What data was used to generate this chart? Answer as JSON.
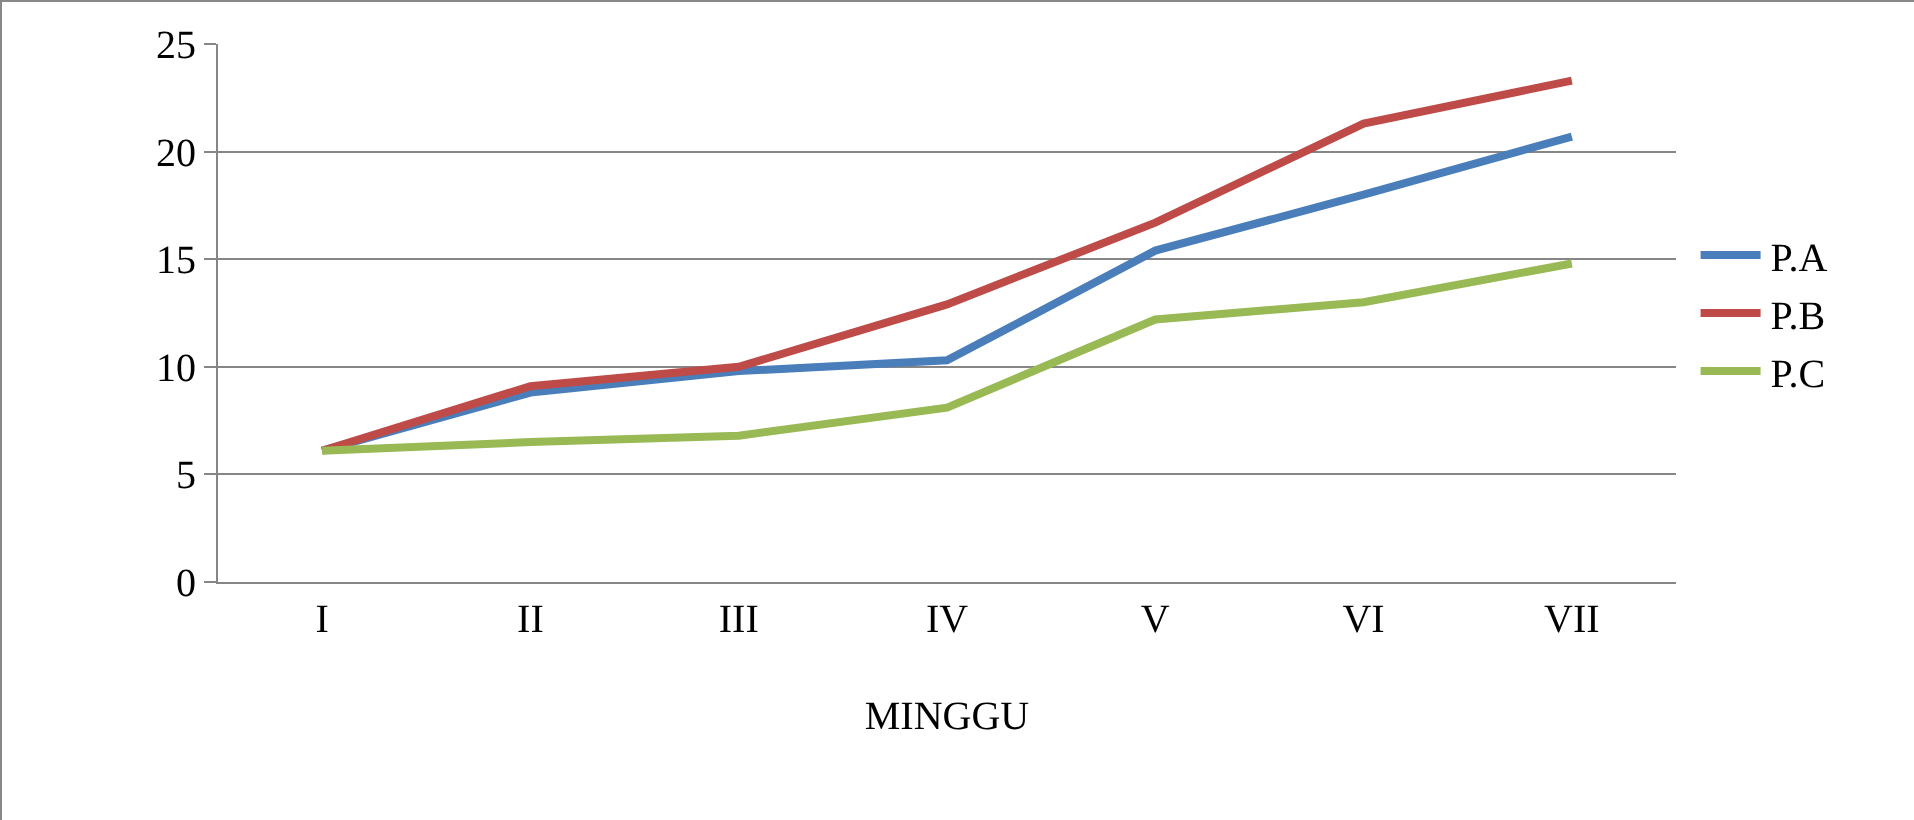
{
  "chart_data": {
    "type": "line",
    "xlabel": "MINGGU",
    "categories": [
      "I",
      "II",
      "III",
      "IV",
      "V",
      "VI",
      "VII"
    ],
    "series": [
      {
        "name": "P.A",
        "color": "#4a7ebb",
        "values": [
          6.1,
          8.8,
          9.8,
          10.3,
          15.4,
          18.0,
          20.7
        ]
      },
      {
        "name": "P.B",
        "color": "#be4b48",
        "values": [
          6.1,
          9.1,
          10.0,
          12.9,
          16.7,
          21.3,
          23.3
        ]
      },
      {
        "name": "P.C",
        "color": "#98b954",
        "values": [
          6.1,
          6.5,
          6.8,
          8.1,
          12.2,
          13.0,
          14.8
        ]
      }
    ],
    "ylim": [
      0,
      25
    ],
    "yticks": [
      0,
      5,
      10,
      15,
      20,
      25
    ],
    "grid": "y",
    "legend": "right",
    "marker": "none",
    "line_style": "solid"
  }
}
